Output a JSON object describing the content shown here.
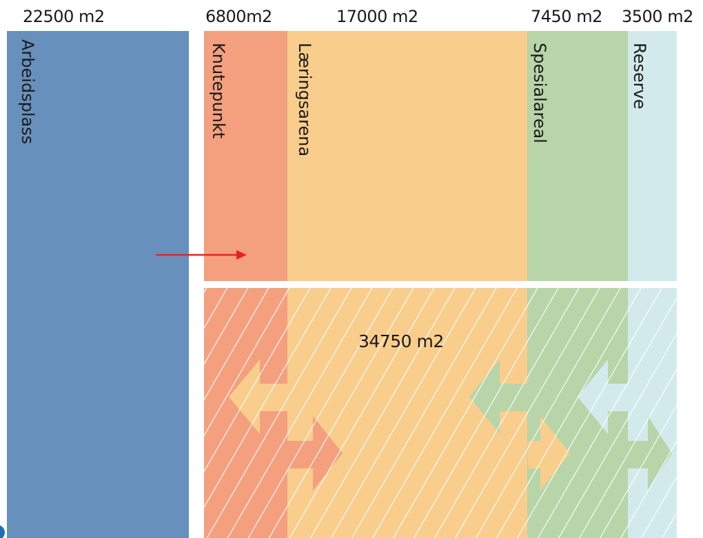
{
  "areas": {
    "arbeidsplass": {
      "size": "22500 m2",
      "label": "Arbeidsplass",
      "color": "#6890bc"
    },
    "knutepunkt": {
      "size": "6800m2",
      "label": "Knutepunkt",
      "color": "#f4a07f"
    },
    "laeringsarena": {
      "size": "17000 m2",
      "label": "Læringsarena",
      "color": "#f9cd8c"
    },
    "spesialareal": {
      "size": "7450 m2",
      "label": "Spesialareal",
      "color": "#b7d5a8"
    },
    "reserve": {
      "size": "3500 m2",
      "label": "Reserve",
      "color": "#d3eaed"
    }
  },
  "shared_area": {
    "total": "34750 m2"
  },
  "colors": {
    "arrow": "#e5251d",
    "bottom_left_blob": "#1d6fb5",
    "hatch": "#ffffff"
  },
  "icons": [
    "arrow-right-icon",
    "double-arrow-icon"
  ]
}
